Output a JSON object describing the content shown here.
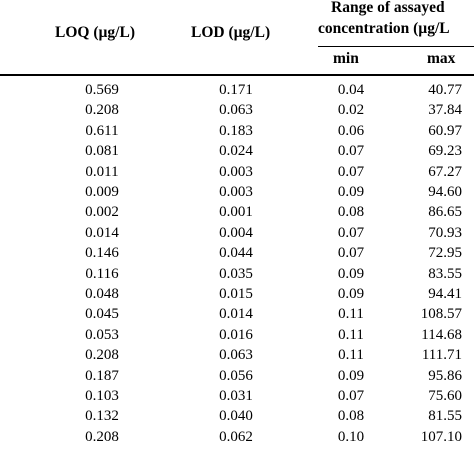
{
  "headers": {
    "loq": "LOQ (µg/L)",
    "lod": "LOD (µg/L)",
    "range_line1": "Range of assayed",
    "range_line2": "concentration (µg/L",
    "min": "min",
    "max": "max"
  },
  "rows": [
    {
      "loq": "0.569",
      "lod": "0.171",
      "min": "0.04",
      "max": "40.77"
    },
    {
      "loq": "0.208",
      "lod": "0.063",
      "min": "0.02",
      "max": "37.84"
    },
    {
      "loq": "0.611",
      "lod": "0.183",
      "min": "0.06",
      "max": "60.97"
    },
    {
      "loq": "0.081",
      "lod": "0.024",
      "min": "0.07",
      "max": "69.23"
    },
    {
      "loq": "0.011",
      "lod": "0.003",
      "min": "0.07",
      "max": "67.27"
    },
    {
      "loq": "0.009",
      "lod": "0.003",
      "min": "0.09",
      "max": "94.60"
    },
    {
      "loq": "0.002",
      "lod": "0.001",
      "min": "0.08",
      "max": "86.65"
    },
    {
      "loq": "0.014",
      "lod": "0.004",
      "min": "0.07",
      "max": "70.93"
    },
    {
      "loq": "0.146",
      "lod": "0.044",
      "min": "0.07",
      "max": "72.95"
    },
    {
      "loq": "0.116",
      "lod": "0.035",
      "min": "0.09",
      "max": "83.55"
    },
    {
      "loq": "0.048",
      "lod": "0.015",
      "min": "0.09",
      "max": "94.41"
    },
    {
      "loq": "0.045",
      "lod": "0.014",
      "min": "0.11",
      "max": "108.57"
    },
    {
      "loq": "0.053",
      "lod": "0.016",
      "min": "0.11",
      "max": "114.68"
    },
    {
      "loq": "0.208",
      "lod": "0.063",
      "min": "0.11",
      "max": "111.71"
    },
    {
      "loq": "0.187",
      "lod": "0.056",
      "min": "0.09",
      "max": "95.86"
    },
    {
      "loq": "0.103",
      "lod": "0.031",
      "min": "0.07",
      "max": "75.60"
    },
    {
      "loq": "0.132",
      "lod": "0.040",
      "min": "0.08",
      "max": "81.55"
    },
    {
      "loq": "0.208",
      "lod": "0.062",
      "min": "0.10",
      "max": "107.10"
    }
  ]
}
